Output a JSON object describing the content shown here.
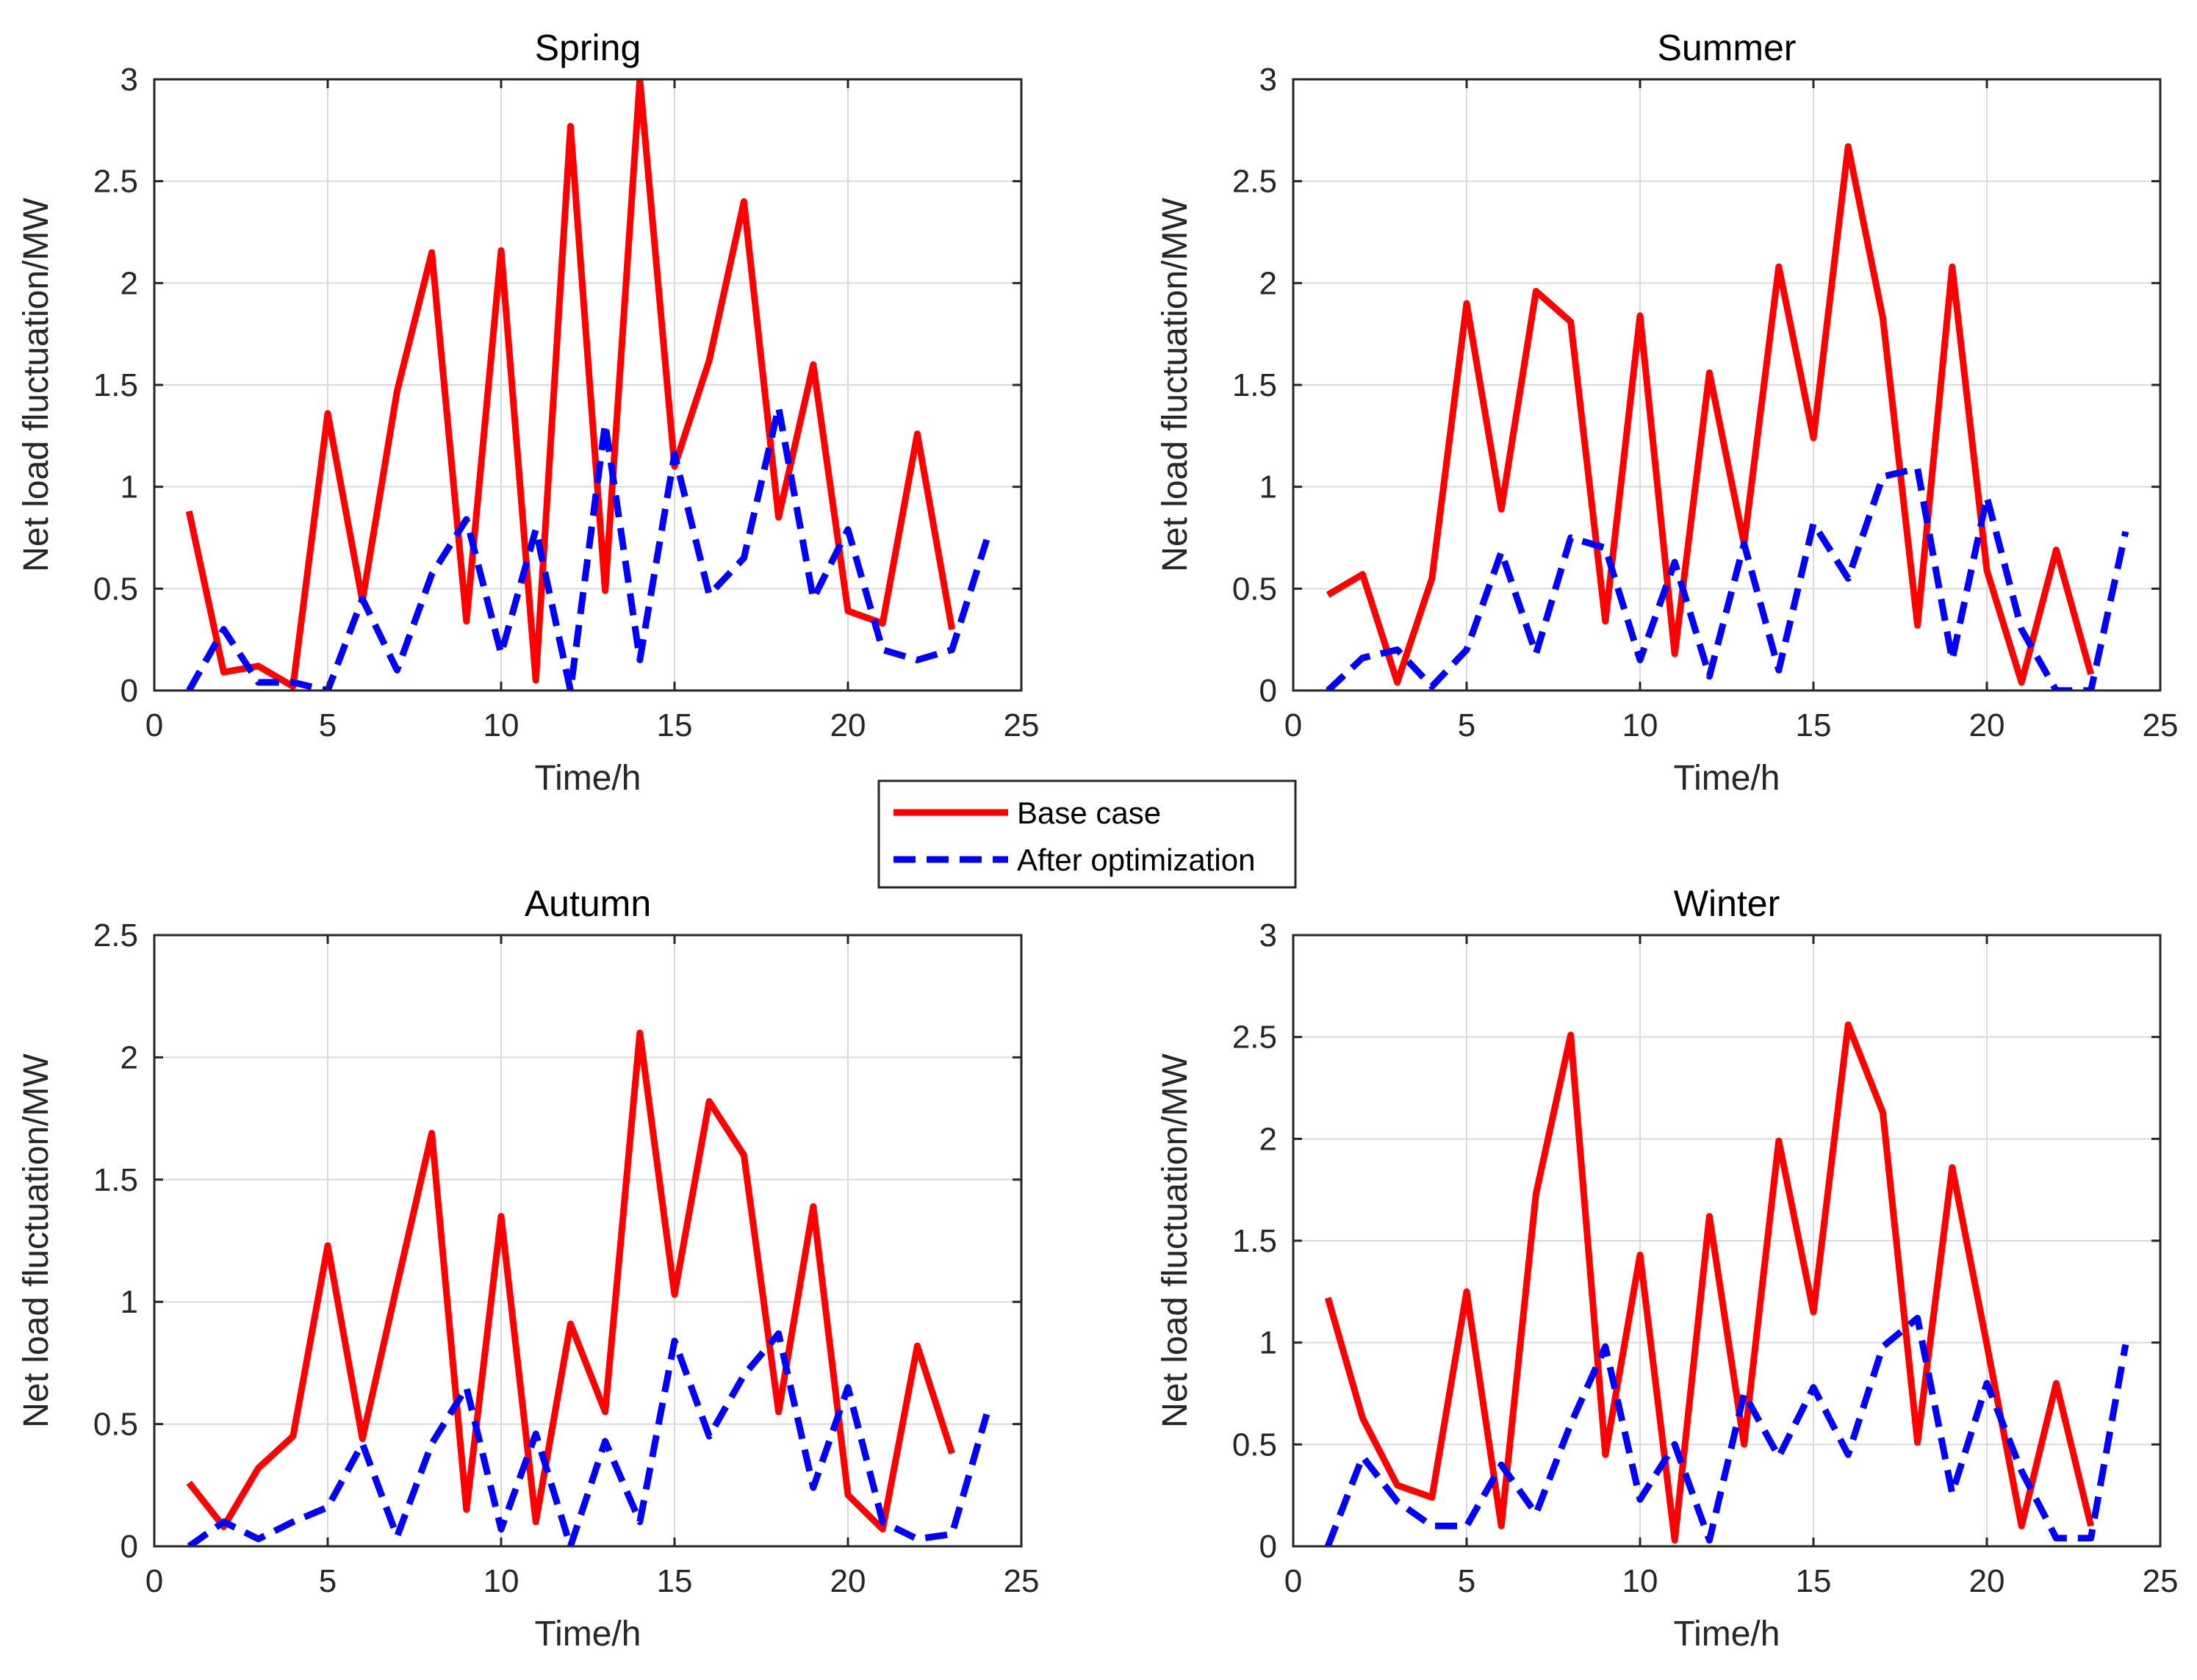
{
  "chart_data": [
    {
      "type": "line",
      "title": "Spring",
      "xlabel": "Time/h",
      "ylabel": "Net load fluctuation/MW",
      "xlim": [
        0,
        25
      ],
      "ylim": [
        0,
        3
      ],
      "xticks": [
        0,
        5,
        10,
        15,
        20,
        25
      ],
      "yticks": [
        0,
        0.5,
        1,
        1.5,
        2,
        2.5,
        3
      ],
      "series": [
        {
          "name": "Base case",
          "color": "#ff0000",
          "style": "solid",
          "x": [
            1,
            2,
            3,
            4,
            5,
            6,
            7,
            8,
            9,
            10,
            11,
            12,
            13,
            14,
            15,
            16,
            17,
            18,
            19,
            20,
            21,
            22,
            23
          ],
          "values": [
            0.88,
            0.09,
            0.12,
            0.02,
            1.36,
            0.44,
            1.47,
            2.15,
            0.34,
            2.16,
            0.05,
            2.77,
            0.49,
            3.0,
            1.1,
            1.62,
            2.4,
            0.85,
            1.6,
            0.39,
            0.33,
            1.26,
            0.3
          ]
        },
        {
          "name": "After optimization",
          "color": "#0000ff",
          "style": "dashed",
          "x": [
            1,
            2,
            3,
            4,
            5,
            6,
            7,
            8,
            9,
            10,
            11,
            12,
            13,
            14,
            15,
            16,
            17,
            18,
            19,
            20,
            21,
            22,
            23,
            24
          ],
          "values": [
            0.0,
            0.3,
            0.04,
            0.04,
            0.0,
            0.45,
            0.1,
            0.57,
            0.84,
            0.18,
            0.79,
            0.0,
            1.31,
            0.15,
            1.16,
            0.47,
            0.65,
            1.39,
            0.45,
            0.79,
            0.2,
            0.15,
            0.2,
            0.74
          ]
        }
      ]
    },
    {
      "type": "line",
      "title": "Summer",
      "xlabel": "Time/h",
      "ylabel": "Net load fluctuation/MW",
      "xlim": [
        0,
        25
      ],
      "ylim": [
        0,
        3
      ],
      "xticks": [
        0,
        5,
        10,
        15,
        20,
        25
      ],
      "yticks": [
        0,
        0.5,
        1,
        1.5,
        2,
        2.5,
        3
      ],
      "series": [
        {
          "name": "Base case",
          "color": "#ff0000",
          "style": "solid",
          "x": [
            1,
            2,
            3,
            4,
            5,
            6,
            7,
            8,
            9,
            10,
            11,
            12,
            13,
            14,
            15,
            16,
            17,
            18,
            19,
            20,
            21,
            22,
            23
          ],
          "values": [
            0.47,
            0.57,
            0.04,
            0.55,
            1.9,
            0.89,
            1.96,
            1.81,
            0.34,
            1.84,
            0.18,
            1.56,
            0.72,
            2.08,
            1.24,
            2.67,
            1.83,
            0.32,
            2.08,
            0.59,
            0.04,
            0.69,
            0.08
          ]
        },
        {
          "name": "After optimization",
          "color": "#0000ff",
          "style": "dashed",
          "x": [
            1,
            2,
            3,
            4,
            5,
            6,
            7,
            8,
            9,
            10,
            11,
            12,
            13,
            14,
            15,
            16,
            17,
            18,
            19,
            20,
            21,
            22,
            23,
            24
          ],
          "values": [
            0.0,
            0.16,
            0.2,
            0.02,
            0.2,
            0.68,
            0.18,
            0.75,
            0.7,
            0.15,
            0.63,
            0.07,
            0.72,
            0.1,
            0.82,
            0.55,
            1.05,
            1.09,
            0.15,
            0.95,
            0.3,
            0.0,
            0.0,
            0.78
          ]
        }
      ]
    },
    {
      "type": "line",
      "title": "Autumn",
      "xlabel": "Time/h",
      "ylabel": "Net load fluctuation/MW",
      "xlim": [
        0,
        25
      ],
      "ylim": [
        0,
        2.5
      ],
      "xticks": [
        0,
        5,
        10,
        15,
        20,
        25
      ],
      "yticks": [
        0,
        0.5,
        1,
        1.5,
        2,
        2.5
      ],
      "series": [
        {
          "name": "Base case",
          "color": "#ff0000",
          "style": "solid",
          "x": [
            1,
            2,
            3,
            4,
            5,
            6,
            7,
            8,
            9,
            10,
            11,
            12,
            13,
            14,
            15,
            16,
            17,
            18,
            19,
            20,
            21,
            22,
            23
          ],
          "values": [
            0.26,
            0.08,
            0.32,
            0.45,
            1.23,
            0.44,
            1.07,
            1.69,
            0.15,
            1.35,
            0.1,
            0.91,
            0.55,
            2.1,
            1.03,
            1.82,
            1.6,
            0.55,
            1.39,
            0.21,
            0.07,
            0.82,
            0.38
          ]
        },
        {
          "name": "After optimization",
          "color": "#0000ff",
          "style": "dashed",
          "x": [
            1,
            2,
            3,
            4,
            5,
            6,
            7,
            8,
            9,
            10,
            11,
            12,
            13,
            14,
            15,
            16,
            17,
            18,
            19,
            20,
            21,
            22,
            23,
            24
          ],
          "values": [
            0.0,
            0.1,
            0.03,
            0.1,
            0.16,
            0.42,
            0.04,
            0.42,
            0.65,
            0.07,
            0.46,
            0.0,
            0.43,
            0.1,
            0.84,
            0.45,
            0.7,
            0.87,
            0.24,
            0.65,
            0.1,
            0.03,
            0.05,
            0.54
          ]
        }
      ]
    },
    {
      "type": "line",
      "title": "Winter",
      "xlabel": "Time/h",
      "ylabel": "Net load fluctuation/MW",
      "xlim": [
        0,
        25
      ],
      "ylim": [
        0,
        3
      ],
      "xticks": [
        0,
        5,
        10,
        15,
        20,
        25
      ],
      "yticks": [
        0,
        0.5,
        1,
        1.5,
        2,
        2.5,
        3
      ],
      "series": [
        {
          "name": "Base case",
          "color": "#ff0000",
          "style": "solid",
          "x": [
            1,
            2,
            3,
            4,
            5,
            6,
            7,
            8,
            9,
            10,
            11,
            12,
            13,
            14,
            15,
            16,
            17,
            18,
            19,
            20,
            21,
            22,
            23
          ],
          "values": [
            1.22,
            0.63,
            0.3,
            0.24,
            1.25,
            0.1,
            1.73,
            2.51,
            0.45,
            1.43,
            0.03,
            1.62,
            0.5,
            1.99,
            1.15,
            2.56,
            2.13,
            0.51,
            1.86,
            0.99,
            0.1,
            0.8,
            0.1
          ]
        },
        {
          "name": "After optimization",
          "color": "#0000ff",
          "style": "dashed",
          "x": [
            1,
            2,
            3,
            4,
            5,
            6,
            7,
            8,
            9,
            10,
            11,
            12,
            13,
            14,
            15,
            16,
            17,
            18,
            19,
            20,
            21,
            22,
            23,
            24
          ],
          "values": [
            0.0,
            0.44,
            0.22,
            0.1,
            0.1,
            0.4,
            0.16,
            0.6,
            0.98,
            0.23,
            0.5,
            0.03,
            0.75,
            0.44,
            0.78,
            0.45,
            0.98,
            1.12,
            0.26,
            0.8,
            0.37,
            0.04,
            0.04,
            0.99
          ]
        }
      ]
    }
  ],
  "legend": {
    "items": [
      {
        "label": "Base case",
        "color": "#ff0000",
        "style": "solid"
      },
      {
        "label": "After optimization",
        "color": "#0000ff",
        "style": "dashed"
      }
    ],
    "placement": "center"
  }
}
